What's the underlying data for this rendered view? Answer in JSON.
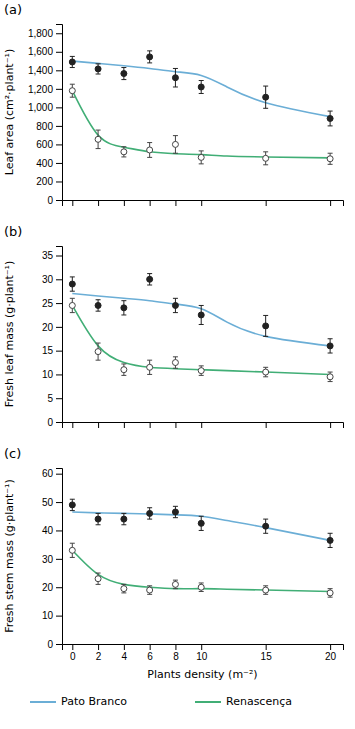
{
  "chart_data": [
    {
      "type": "line",
      "title": "(a)",
      "y_label": "Leaf area (cm²·plant⁻¹)",
      "xlim": [
        -0.8,
        21
      ],
      "xticks": [
        0,
        2,
        4,
        6,
        8,
        10,
        15,
        20
      ],
      "ylim": [
        0,
        1900
      ],
      "yticks": [
        0,
        200,
        400,
        600,
        800,
        {
          "value": 1000,
          "label": "1,000"
        },
        {
          "value": 1200,
          "label": "1,200"
        },
        {
          "value": 1400,
          "label": "1,400"
        },
        {
          "value": 1600,
          "label": "1,600"
        },
        {
          "value": 1800,
          "label": "1,800"
        }
      ],
      "tick_labels": "y",
      "series": [
        {
          "type": "line",
          "color": "#6baed6",
          "x": [
            0,
            2,
            4,
            6,
            8,
            10,
            12,
            15,
            20
          ],
          "values": [
            1500,
            1475,
            1450,
            1420,
            1385,
            1345,
            1220,
            1050,
            900
          ]
        },
        {
          "type": "line",
          "color": "#41ae76",
          "x": [
            0,
            2,
            4,
            6,
            8,
            10,
            12,
            15,
            20
          ],
          "values": [
            1180,
            700,
            570,
            520,
            500,
            490,
            475,
            465,
            455
          ]
        },
        {
          "type": "scatter",
          "marker": "circle",
          "color": "#222222",
          "x": [
            0,
            2,
            4,
            6,
            8,
            10,
            15,
            20
          ],
          "values": [
            1490,
            1415,
            1365,
            1545,
            1320,
            1220,
            1110,
            880
          ],
          "errors": [
            60,
            55,
            65,
            65,
            100,
            70,
            120,
            80
          ]
        },
        {
          "type": "scatter",
          "marker": "open-circle",
          "color": "#444444",
          "x": [
            0,
            2,
            4,
            6,
            8,
            10,
            15,
            20
          ],
          "values": [
            1180,
            655,
            520,
            540,
            600,
            460,
            450,
            445
          ],
          "errors": [
            70,
            100,
            55,
            80,
            95,
            70,
            70,
            60
          ]
        }
      ]
    },
    {
      "type": "line",
      "title": "(b)",
      "y_label": "Fresh leaf mass (g·plant⁻¹)",
      "xlim": [
        -0.8,
        21
      ],
      "xticks": [
        0,
        2,
        4,
        6,
        8,
        10,
        15,
        20
      ],
      "ylim": [
        0,
        37
      ],
      "yticks": [
        0,
        5,
        10,
        15,
        20,
        25,
        30,
        35
      ],
      "tick_labels": "y",
      "series": [
        {
          "type": "line",
          "color": "#6baed6",
          "x": [
            0,
            2,
            4,
            6,
            8,
            10,
            12,
            15,
            20
          ],
          "values": [
            27.0,
            26.5,
            26.0,
            25.5,
            24.8,
            23.8,
            21.0,
            18.0,
            16.0
          ]
        },
        {
          "type": "line",
          "color": "#41ae76",
          "x": [
            0,
            2,
            4,
            6,
            8,
            10,
            12,
            15,
            20
          ],
          "values": [
            24.5,
            16.0,
            12.5,
            11.5,
            11.2,
            11.0,
            10.8,
            10.5,
            10.0
          ]
        },
        {
          "type": "scatter",
          "marker": "circle",
          "color": "#222222",
          "x": [
            0,
            2,
            4,
            6,
            8,
            10,
            15,
            20
          ],
          "values": [
            29.0,
            24.5,
            24.0,
            30.0,
            24.5,
            22.5,
            20.2,
            16.0
          ],
          "errors": [
            1.5,
            1.2,
            1.5,
            1.2,
            1.5,
            2.0,
            2.2,
            1.5
          ]
        },
        {
          "type": "scatter",
          "marker": "open-circle",
          "color": "#444444",
          "x": [
            0,
            2,
            4,
            6,
            8,
            10,
            15,
            20
          ],
          "values": [
            24.5,
            14.8,
            11.0,
            11.5,
            12.5,
            10.8,
            10.5,
            9.5
          ],
          "errors": [
            1.5,
            1.8,
            1.2,
            1.5,
            1.2,
            1.0,
            1.0,
            1.0
          ]
        }
      ]
    },
    {
      "type": "line",
      "title": "(c)",
      "y_label": "Fresh stem mass (g·plant⁻¹)",
      "x_label": "Plants density (m⁻²)",
      "xlim": [
        -0.8,
        21
      ],
      "xticks": [
        0,
        2,
        4,
        6,
        8,
        10,
        15,
        20
      ],
      "ylim": [
        0,
        62
      ],
      "yticks": [
        0,
        10,
        20,
        30,
        40,
        50,
        60
      ],
      "legend": "bottom",
      "series": [
        {
          "name": "Pato Branco",
          "type": "line",
          "color": "#6baed6",
          "x": [
            0,
            2,
            4,
            6,
            8,
            10,
            12,
            15,
            20
          ],
          "values": [
            46.5,
            46.2,
            46.0,
            45.8,
            45.5,
            45.0,
            43.5,
            41.0,
            36.5
          ]
        },
        {
          "name": "Renascença",
          "type": "line",
          "color": "#41ae76",
          "x": [
            0,
            2,
            4,
            6,
            8,
            10,
            12,
            15,
            20
          ],
          "values": [
            33.0,
            24.5,
            21.0,
            20.0,
            19.5,
            19.5,
            19.3,
            19.0,
            18.5
          ]
        },
        {
          "type": "scatter",
          "marker": "circle",
          "color": "#222222",
          "x": [
            0,
            2,
            4,
            6,
            8,
            10,
            15,
            20
          ],
          "values": [
            49.0,
            44.0,
            44.0,
            46.0,
            46.5,
            42.5,
            41.5,
            36.5
          ],
          "errors": [
            2.0,
            2.0,
            2.0,
            2.0,
            2.0,
            2.5,
            2.5,
            2.5
          ]
        },
        {
          "type": "scatter",
          "marker": "open-circle",
          "color": "#444444",
          "x": [
            0,
            2,
            4,
            6,
            8,
            10,
            15,
            20
          ],
          "values": [
            33.0,
            23.0,
            19.5,
            19.0,
            21.0,
            20.0,
            19.0,
            18.0
          ],
          "errors": [
            2.5,
            2.0,
            1.5,
            1.5,
            1.5,
            1.5,
            1.5,
            1.5
          ]
        }
      ]
    }
  ]
}
